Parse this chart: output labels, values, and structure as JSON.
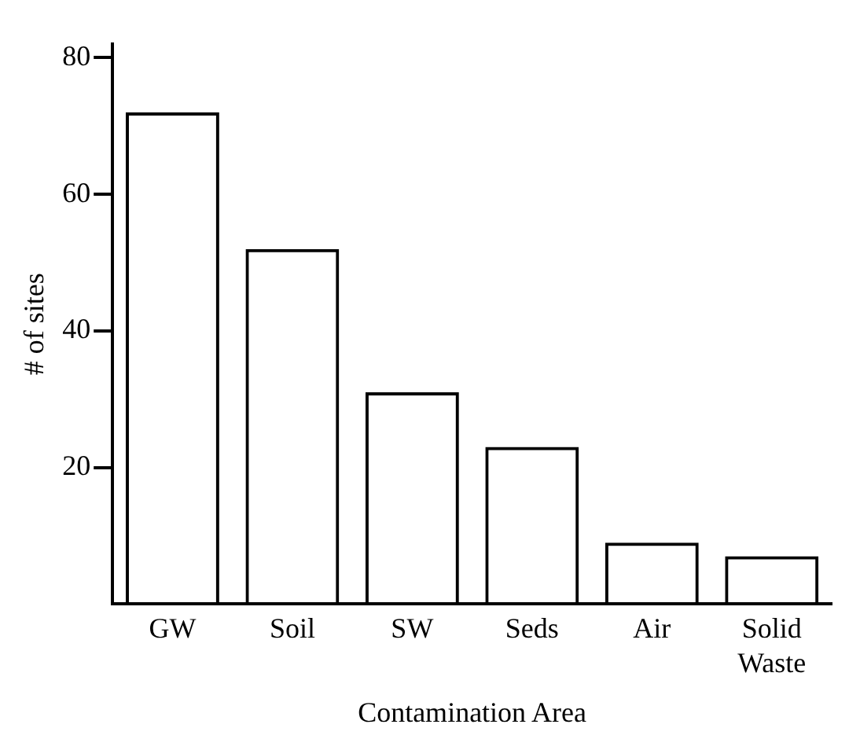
{
  "chart_data": {
    "type": "bar",
    "xlabel": "Contamination Area",
    "ylabel": "# of sites",
    "categories": [
      "GW",
      "Soil",
      "SW",
      "Seds",
      "Air",
      "Solid Waste"
    ],
    "values": [
      72,
      52,
      31,
      23,
      9,
      7
    ],
    "color": "#000000",
    "ylim": [
      0,
      82
    ],
    "yticks": [
      20,
      40,
      60,
      80
    ],
    "grid": false,
    "legend": false
  }
}
